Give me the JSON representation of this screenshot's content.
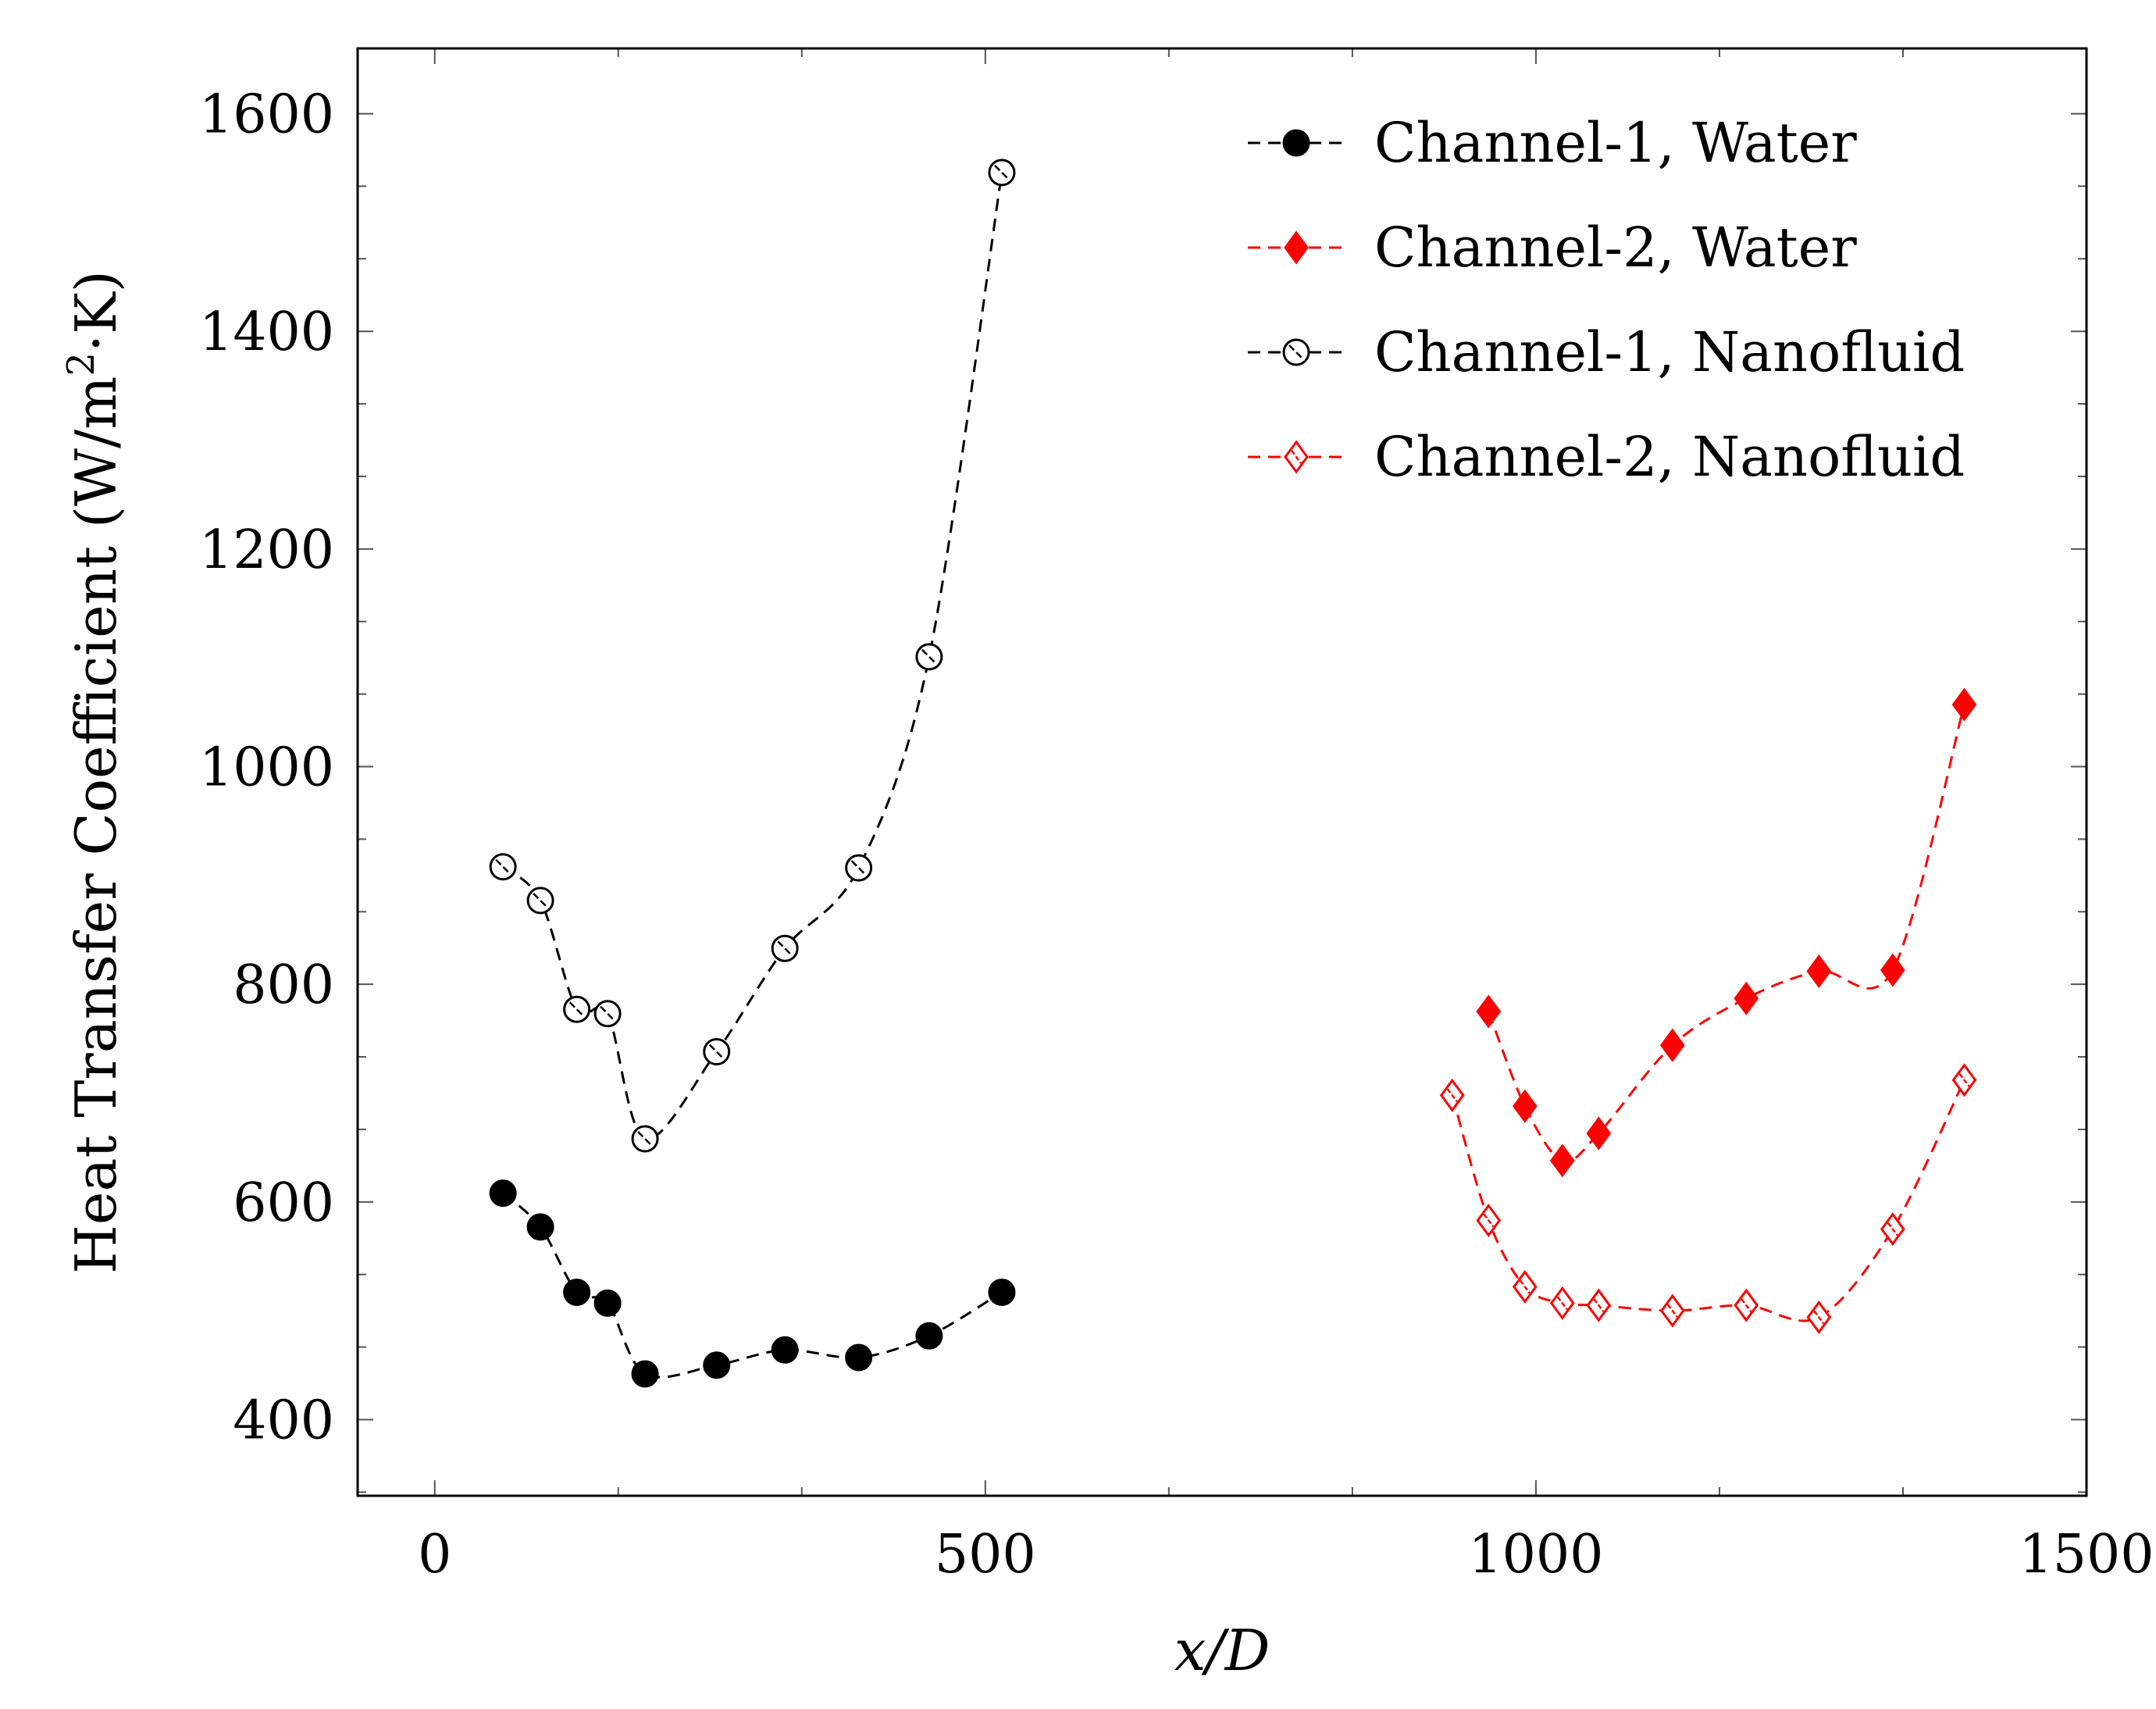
{
  "chart_data": {
    "type": "line",
    "xlabel": "x/D",
    "ylabel": "Heat Transfer Coefficient (W/m²·K)",
    "ylabel_main": "Heat Transfer Coefficient (W/m",
    "ylabel_sup": "2",
    "ylabel_tail": "·K)",
    "xlim": [
      -70,
      1500
    ],
    "ylim": [
      330,
      1660
    ],
    "x_ticks": [
      0,
      500,
      1000,
      1500
    ],
    "y_ticks": [
      400,
      600,
      800,
      1000,
      1200,
      1400,
      1600
    ],
    "x_tick_labels": [
      "0",
      "500",
      "1000",
      "1500"
    ],
    "y_tick_labels": [
      "400",
      "600",
      "800",
      "1000",
      "1200",
      "1400",
      "1600"
    ],
    "x_minor_step": 166.67,
    "y_minor_step": 66.67,
    "legend_position": "top-right",
    "series": [
      {
        "name": "Channel-1, Water",
        "color": "#000000",
        "marker": "circle",
        "filled": true,
        "x": [
          62,
          96,
          129,
          157,
          191,
          256,
          318,
          385,
          449,
          515
        ],
        "y": [
          608,
          577,
          517,
          507,
          442,
          450,
          464,
          457,
          477,
          517
        ]
      },
      {
        "name": "Channel-2, Water",
        "color": "#ff0000",
        "marker": "diamond",
        "filled": true,
        "x": [
          957,
          990,
          1024,
          1057,
          1124,
          1191,
          1257,
          1324,
          1389
        ],
        "y": [
          775,
          688,
          638,
          663,
          744,
          787,
          812,
          813,
          1057
        ]
      },
      {
        "name": "Channel-1, Nanofluid",
        "color": "#000000",
        "marker": "circle",
        "filled": false,
        "x": [
          62,
          96,
          129,
          157,
          191,
          256,
          318,
          385,
          449,
          515
        ],
        "y": [
          908,
          877,
          777,
          773,
          658,
          738,
          833,
          907,
          1101,
          1546
        ]
      },
      {
        "name": "Channel-2, Nanofluid",
        "color": "#ff0000",
        "marker": "diamond",
        "filled": false,
        "x": [
          924,
          957,
          990,
          1024,
          1057,
          1124,
          1191,
          1257,
          1324,
          1389
        ],
        "y": [
          698,
          583,
          522,
          507,
          505,
          500,
          505,
          494,
          575,
          712
        ]
      }
    ]
  }
}
